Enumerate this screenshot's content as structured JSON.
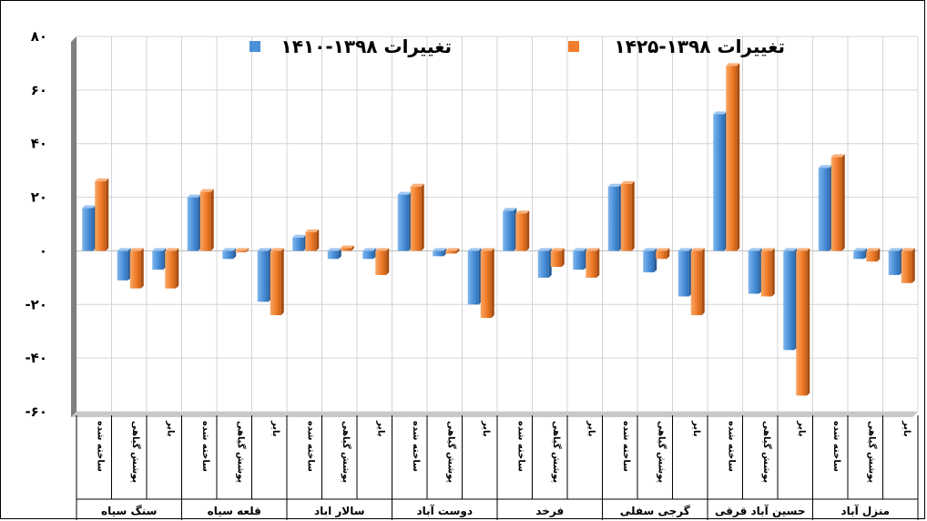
{
  "chart_data": {
    "type": "bar",
    "legend_position": "top",
    "grid": true,
    "ylim": [
      -60,
      80
    ],
    "yticks": [
      -60,
      -40,
      -20,
      0,
      20,
      40,
      60,
      80
    ],
    "ytick_labels": [
      "-۶۰",
      "-۴۰",
      "-۲۰",
      "۰",
      "۲۰",
      "۴۰",
      "۶۰",
      "۸۰"
    ],
    "groups": [
      {
        "name": "سنگ سیاه",
        "categories": [
          "ساخته شده",
          "پوشش گیاهی",
          "بایر"
        ]
      },
      {
        "name": "قلعه سیاه",
        "categories": [
          "ساخته شده",
          "پوشش گیاهی",
          "بایر"
        ]
      },
      {
        "name": "سالار اباد",
        "categories": [
          "ساخته شده",
          "پوشش گیاهی",
          "بایر"
        ]
      },
      {
        "name": "دوست آباد",
        "categories": [
          "ساخته شده",
          "پوشش گیاهی",
          "بایر"
        ]
      },
      {
        "name": "فرخد",
        "categories": [
          "ساخته شده",
          "پوشش گیاهی",
          "بایر"
        ]
      },
      {
        "name": "گرجی سفلی",
        "categories": [
          "ساخته شده",
          "پوشش گیاهی",
          "بایر"
        ]
      },
      {
        "name": "حسین آباد قرقی",
        "categories": [
          "ساخته شده",
          "پوشش گیاهی",
          "بایر"
        ]
      },
      {
        "name": "منزل آباد",
        "categories": [
          "ساخته شده",
          "پوشش گیاهی",
          "بایر"
        ]
      }
    ],
    "series": [
      {
        "name": "تغییرات ۱۳۹۸-۱۴۱۰",
        "color": "#4a90d9",
        "values": [
          16,
          -11,
          -7,
          20,
          -3,
          -19,
          5,
          -3,
          -3,
          21,
          -2,
          -20,
          15,
          -10,
          -7,
          24,
          -8,
          -17,
          51,
          -16,
          -37,
          31,
          -3,
          -9
        ]
      },
      {
        "name": "تغییرات ۱۳۹۸-۱۴۲۵",
        "color": "#f07d2b",
        "values": [
          26,
          -14,
          -14,
          22,
          0,
          -24,
          7,
          1,
          -9,
          24,
          -1,
          -25,
          14,
          -6,
          -10,
          25,
          -3,
          -24,
          69,
          -17,
          -54,
          35,
          -4,
          -12
        ]
      }
    ]
  }
}
